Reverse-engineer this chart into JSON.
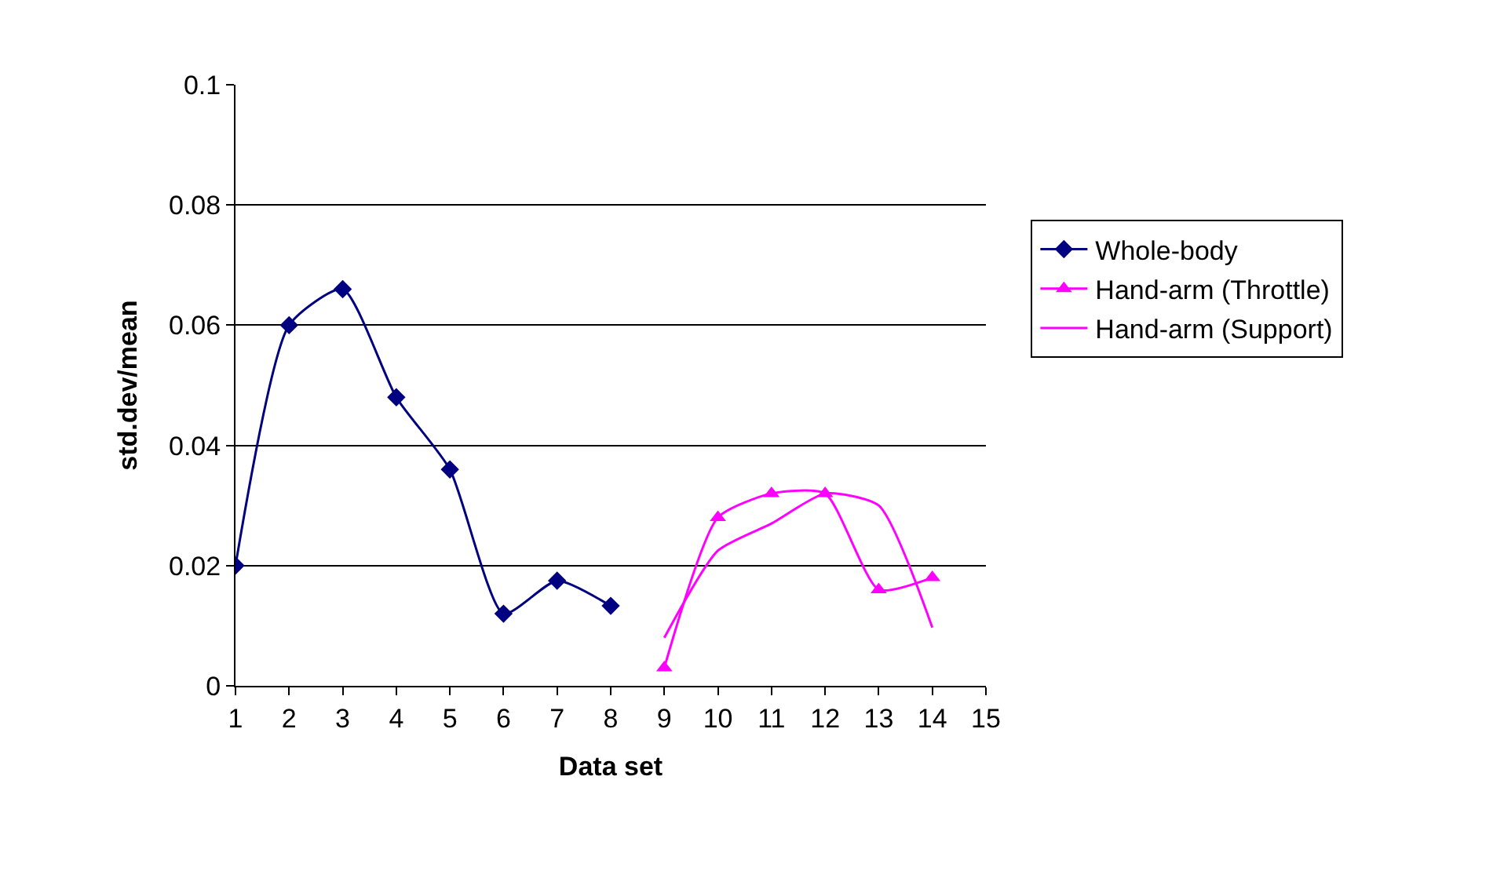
{
  "chart_data": {
    "type": "line",
    "xlabel": "Data set",
    "ylabel": "std.dev/mean",
    "xlim": [
      1,
      15
    ],
    "xticks": [
      1,
      2,
      3,
      4,
      5,
      6,
      7,
      8,
      9,
      10,
      11,
      12,
      13,
      14,
      15
    ],
    "ylim": [
      0,
      0.1
    ],
    "yticks": [
      0,
      0.02,
      0.04,
      0.06,
      0.08,
      0.1
    ],
    "grid": "y",
    "legend": "right",
    "series": [
      {
        "name": "Whole-body",
        "color": "#000080",
        "marker": "diamond",
        "x": [
          1,
          2,
          3,
          4,
          5,
          6,
          7,
          8
        ],
        "values": [
          0.02,
          0.06,
          0.066,
          0.048,
          0.036,
          0.012,
          0.0175,
          0.0133
        ]
      },
      {
        "name": "Hand-arm (Throttle)",
        "color": "#ff00ff",
        "marker": "triangle",
        "x": [
          9,
          10,
          11,
          12,
          13,
          14
        ],
        "values": [
          0.003,
          0.028,
          0.032,
          0.032,
          0.016,
          0.018
        ]
      },
      {
        "name": "Hand-arm (Support)",
        "color": "#ff00ff",
        "marker": "none",
        "x": [
          9,
          10,
          11,
          12,
          13,
          14
        ],
        "values": [
          0.008,
          0.0225,
          0.027,
          0.032,
          0.03,
          0.0097
        ]
      }
    ]
  }
}
